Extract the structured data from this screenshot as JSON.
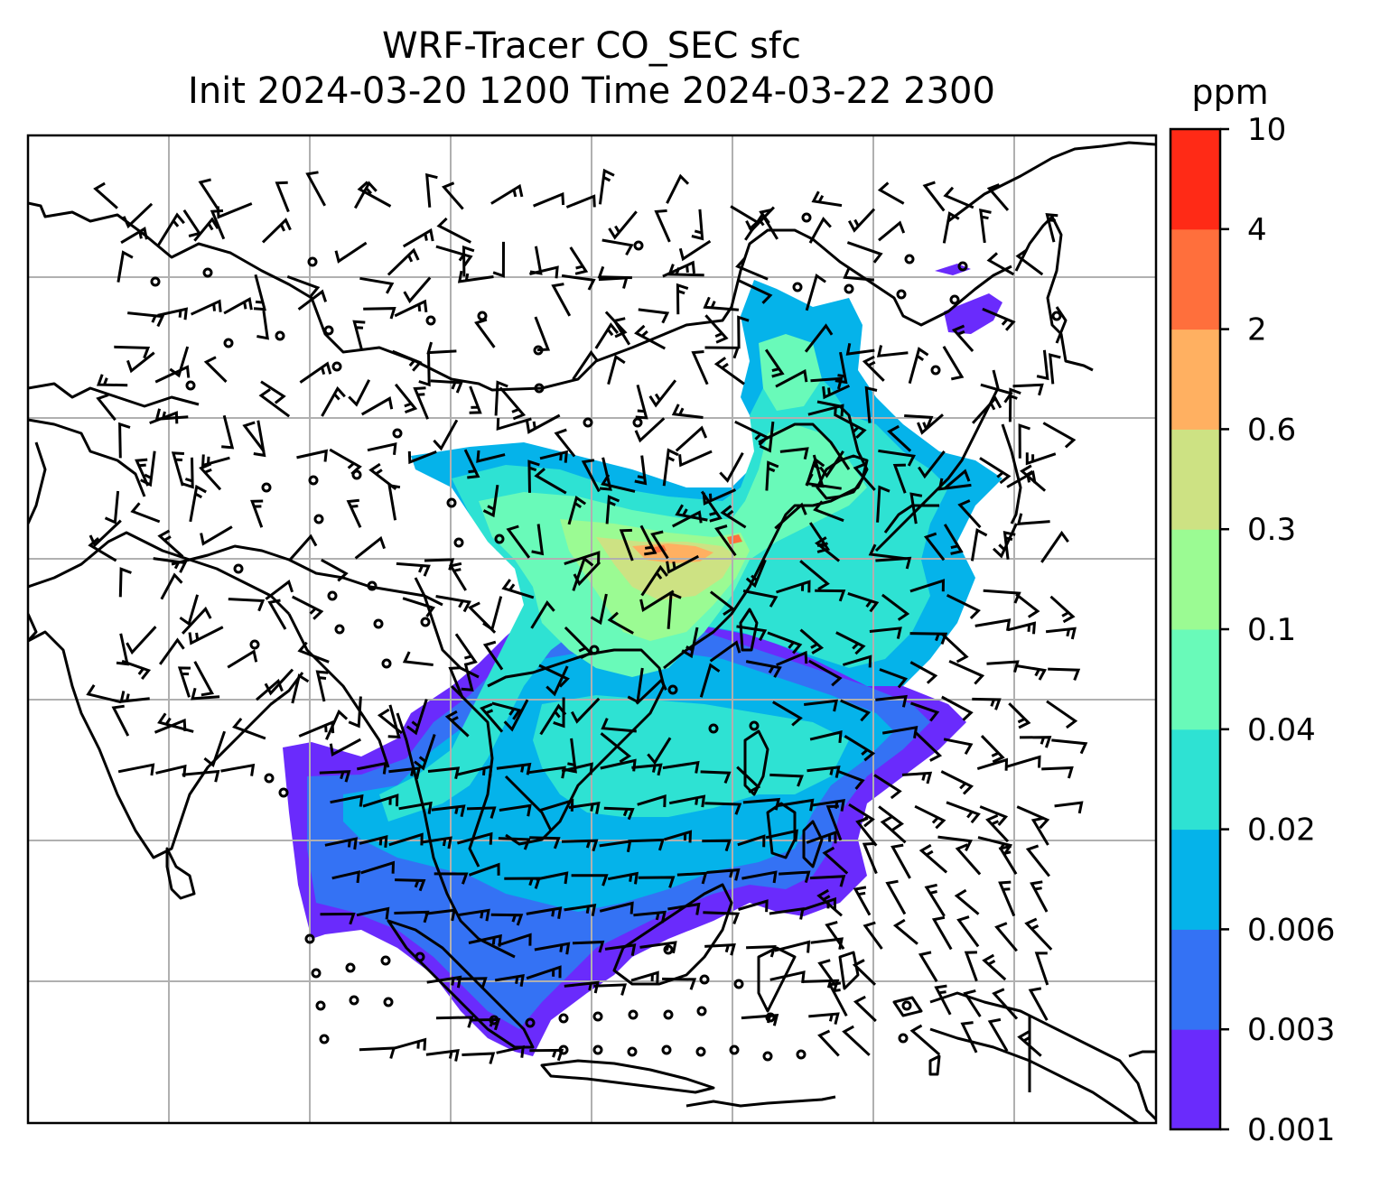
{
  "title": {
    "line1": "WRF-Tracer CO_SEC sfc",
    "line2": "Init 2024-03-20 1200 Time 2024-03-22 2300"
  },
  "colorbar": {
    "unit": "ppm",
    "levels": [
      "0.001",
      "0.003",
      "0.006",
      "0.02",
      "0.04",
      "0.1",
      "0.3",
      "0.6",
      "2",
      "4",
      "10"
    ],
    "colors": [
      "#6a2bfc",
      "#3472f4",
      "#05b3ea",
      "#2ee2d3",
      "#69fab9",
      "#9bfb93",
      "#cde283",
      "#ffb061",
      "#ff6f3c",
      "#ff2a16"
    ]
  },
  "map": {
    "gridline_color": "#b0b0b0",
    "coastline_color": "#000000",
    "wind_barb_color": "#000000"
  }
}
